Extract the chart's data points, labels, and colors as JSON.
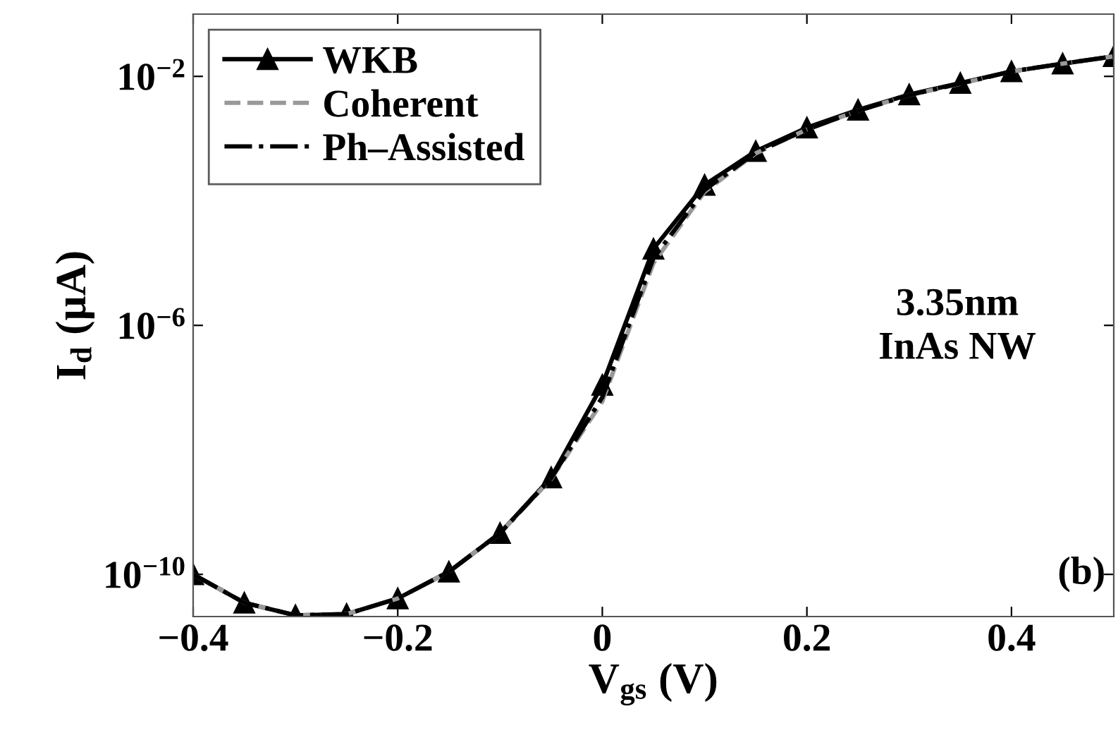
{
  "chart_data": {
    "type": "line",
    "xlabel": "V$_{gs}$ (V)",
    "ylabel": "I$_{d}$ (µA)",
    "x": [
      -0.4,
      -0.35,
      -0.3,
      -0.25,
      -0.2,
      -0.15,
      -0.1,
      -0.05,
      0,
      0.05,
      0.1,
      0.15,
      0.2,
      0.25,
      0.3,
      0.35,
      0.4,
      0.45,
      0.5
    ],
    "series": [
      {
        "name": "WKB",
        "color": "#000000",
        "marker": "triangle",
        "line_style": "solid",
        "values": [
          1e-10,
          3.5e-11,
          2.2e-11,
          2.3e-11,
          4.1e-11,
          1.1e-10,
          4.6e-10,
          3.6e-09,
          1.1e-07,
          1.7e-05,
          0.00018,
          0.00063,
          0.0015,
          0.0029,
          0.0051,
          0.0078,
          0.012,
          0.016,
          0.021
        ]
      },
      {
        "name": "Coherent",
        "color": "#999999",
        "marker": "none",
        "line_style": "dashed",
        "values": [
          1e-10,
          3.5e-11,
          2.2e-11,
          2.3e-11,
          4.1e-11,
          1.1e-10,
          4.6e-10,
          3.4e-09,
          6e-08,
          1e-05,
          0.00014,
          0.00058,
          0.0014,
          0.0028,
          0.005,
          0.0076,
          0.012,
          0.016,
          0.021
        ]
      },
      {
        "name": "Ph–Assisted",
        "color": "#000000",
        "marker": "none",
        "line_style": "dashdot",
        "values": [
          1e-10,
          3.5e-11,
          2.2e-11,
          2.3e-11,
          4.1e-11,
          1.1e-10,
          4.6e-10,
          3.5e-09,
          7e-08,
          1.2e-05,
          0.00015,
          0.0006,
          0.0014,
          0.0028,
          0.005,
          0.0077,
          0.012,
          0.016,
          0.021
        ]
      }
    ],
    "log": "y",
    "xlim": [
      -0.4,
      0.5
    ],
    "ylim": [
      2.1e-11,
      0.1
    ],
    "xticks": [
      {
        "value": -0.4,
        "label": "−0.4"
      },
      {
        "value": -0.2,
        "label": "−0.2"
      },
      0,
      0.2,
      0.4
    ],
    "yticks": [
      {
        "value": 0.01,
        "label": "10$^{−2}$"
      },
      {
        "value": 1e-06,
        "label": "10$^{−6}$"
      },
      {
        "value": 1e-10,
        "label": "10$^{−10}$"
      }
    ],
    "grid": false,
    "legend": "top left",
    "annotations": [
      "3.35nm\nInAs NW",
      "(b)"
    ]
  }
}
